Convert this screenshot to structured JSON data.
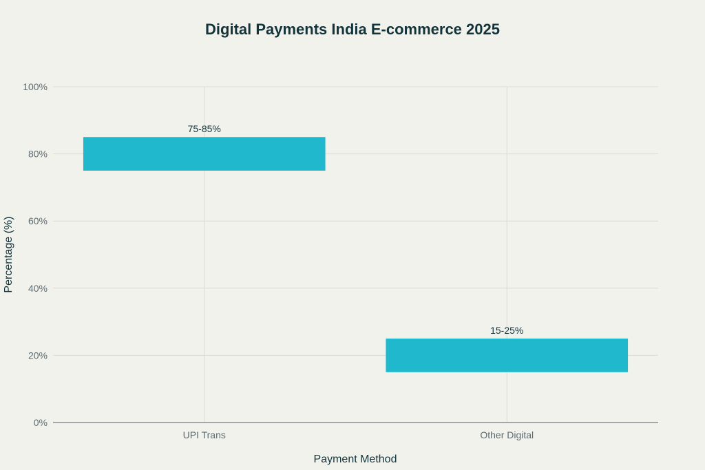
{
  "chart_data": {
    "type": "bar",
    "title": "Digital Payments India E-commerce 2025",
    "xlabel": "Payment Method",
    "ylabel": "Percentage (%)",
    "categories": [
      "UPI Trans",
      "Other Digital"
    ],
    "series": [
      {
        "ranges": [
          [
            75,
            85
          ],
          [
            15,
            25
          ]
        ],
        "labels": [
          "75-85%",
          "15-25%"
        ]
      }
    ],
    "ylim": [
      0,
      100
    ],
    "yticks": [
      0,
      20,
      40,
      60,
      80,
      100
    ],
    "ytick_labels": [
      "0%",
      "20%",
      "40%",
      "60%",
      "80%",
      "100%"
    ],
    "grid": true,
    "bar_color": "#1fb8cd"
  }
}
